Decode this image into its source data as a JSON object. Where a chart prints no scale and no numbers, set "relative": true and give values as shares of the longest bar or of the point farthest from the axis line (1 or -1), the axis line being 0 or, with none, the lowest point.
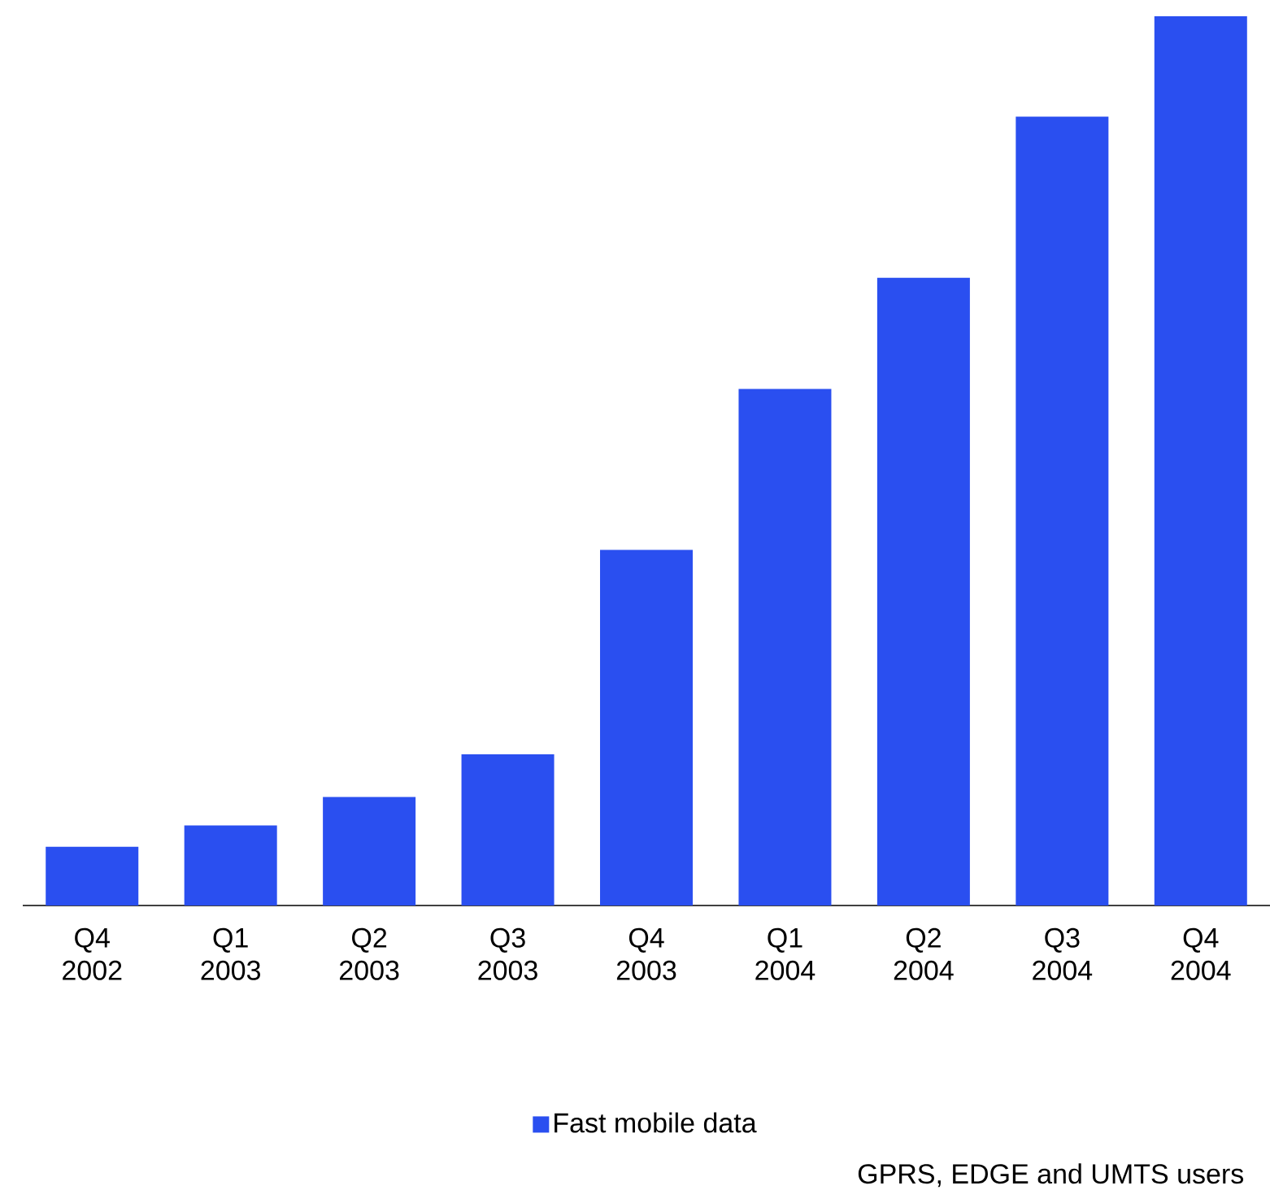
{
  "chart_data": {
    "type": "bar",
    "relative": true,
    "categories": [
      "Q4 2002",
      "Q1 2003",
      "Q2 2003",
      "Q3 2003",
      "Q4 2003",
      "Q1 2004",
      "Q2 2004",
      "Q3 2004",
      "Q4 2004"
    ],
    "series": [
      {
        "name": "Fast mobile data",
        "color": "#2a4ff0",
        "values": [
          0.066,
          0.09,
          0.122,
          0.17,
          0.4,
          0.581,
          0.706,
          0.887,
          1
        ]
      }
    ],
    "legend": "bottom",
    "annotations": [
      "GPRS, EDGE and UMTS users"
    ]
  }
}
